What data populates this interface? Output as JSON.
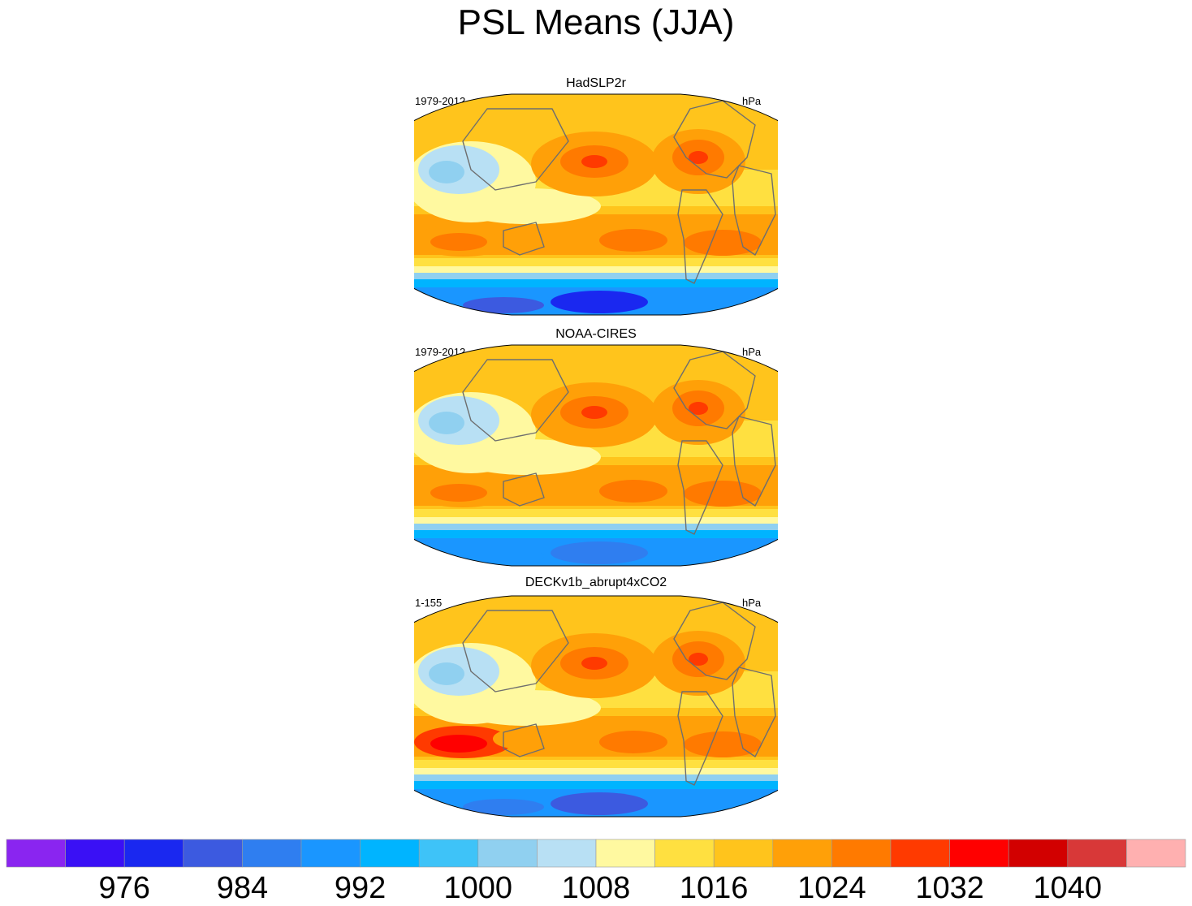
{
  "title": "PSL Means (JJA)",
  "chart_data": [
    {
      "type": "heatmap",
      "title": "HadSLP2r",
      "left_label": "1979-2012",
      "right_label": "hPa",
      "features": {
        "antarctic_low": 976,
        "north_pacific_high": 1024,
        "north_atlantic_high": 1024,
        "south_indian_high": 1024,
        "asia_low": 1004
      }
    },
    {
      "type": "heatmap",
      "title": "NOAA-CIRES",
      "left_label": "1979-2012",
      "right_label": "hPa",
      "features": {
        "antarctic_low": 984,
        "north_pacific_high": 1024,
        "north_atlantic_high": 1024,
        "south_indian_high": 1024,
        "asia_low": 1004
      }
    },
    {
      "type": "heatmap",
      "title": "DECKv1b_abrupt4xCO2",
      "left_label": "1-155",
      "right_label": "hPa",
      "features": {
        "antarctic_low": 980,
        "north_pacific_high": 1024,
        "north_atlantic_high": 1024,
        "south_indian_high": 1032,
        "asia_low": 1004
      }
    }
  ],
  "colorbar": {
    "units": "hPa",
    "boundaries": [
      972,
      976,
      980,
      984,
      988,
      992,
      996,
      1000,
      1004,
      1008,
      1012,
      1016,
      1020,
      1024,
      1028,
      1032,
      1036,
      1040,
      1044
    ],
    "tick_labels": [
      "976",
      "984",
      "992",
      "1000",
      "1008",
      "1016",
      "1024",
      "1032",
      "1040"
    ],
    "colors": [
      "#8a25f0",
      "#3a10f5",
      "#1a28f0",
      "#3c5ae0",
      "#2f7ef0",
      "#1a96ff",
      "#00b4ff",
      "#3ec3f8",
      "#90d0f0",
      "#b8e0f4",
      "#fff9a0",
      "#ffe040",
      "#ffc41c",
      "#ffa008",
      "#ff7a00",
      "#ff3a00",
      "#ff0000",
      "#d20000",
      "#d83838",
      "#ffb0b0"
    ]
  }
}
